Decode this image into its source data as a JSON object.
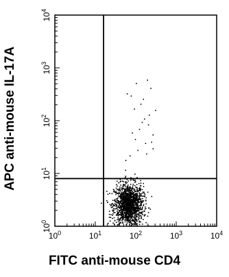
{
  "chart_data": {
    "type": "scatter",
    "subtype": "flow-cytometry-dot-plot",
    "title": "",
    "xlabel": "FITC anti-mouse CD4",
    "ylabel": "APC anti-mouse IL-17A",
    "xscale": "log",
    "yscale": "log",
    "xlim": [
      1,
      10000
    ],
    "ylim": [
      1,
      10000
    ],
    "x_tick_labels": [
      "10^0",
      "10^1",
      "10^2",
      "10^3",
      "10^4"
    ],
    "y_tick_labels": [
      "10^0",
      "10^1",
      "10^2",
      "10^3",
      "10^4"
    ],
    "gates": {
      "x": 16,
      "y": 8
    },
    "main_population": {
      "x_center": 65,
      "y_center": 2.6,
      "x_spread_decades": 0.18,
      "y_spread_decades": 0.2
    },
    "points": [
      [
        190,
        600
      ],
      [
        230,
        420
      ],
      [
        100,
        520
      ],
      [
        150,
        260
      ],
      [
        90,
        170
      ],
      [
        60,
        330
      ],
      [
        140,
        95
      ],
      [
        260,
        55
      ],
      [
        170,
        38
      ],
      [
        110,
        28
      ],
      [
        70,
        22
      ],
      [
        210,
        130
      ],
      [
        300,
        160
      ],
      [
        120,
        70
      ],
      [
        95,
        45
      ],
      [
        55,
        18
      ],
      [
        180,
        24
      ],
      [
        240,
        40
      ],
      [
        80,
        60
      ],
      [
        130,
        210
      ],
      [
        160,
        110
      ],
      [
        75,
        300
      ],
      [
        200,
        85
      ],
      [
        260,
        30
      ]
    ],
    "grid": false,
    "legend": "none",
    "colors": {
      "points": "#000000",
      "axis": "#000000",
      "gates": "#000000"
    }
  }
}
